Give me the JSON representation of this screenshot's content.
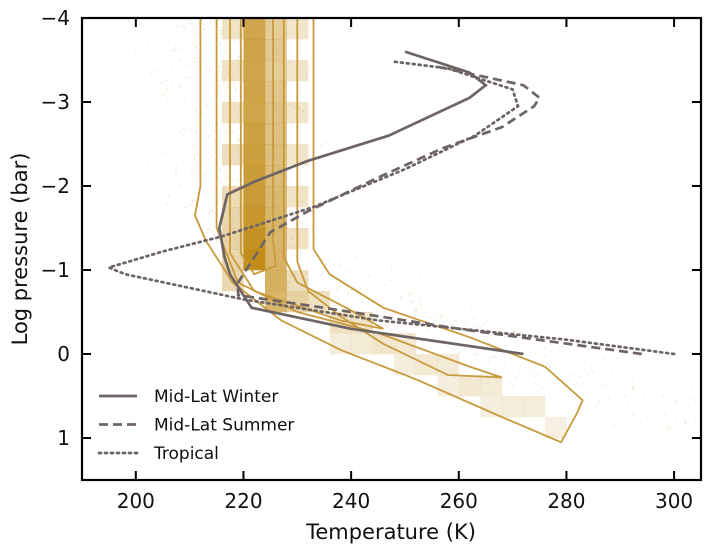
{
  "chart_data": {
    "type": "line",
    "xlabel": "Temperature (K)",
    "ylabel": "Log pressure (bar)",
    "xlim": [
      190,
      305
    ],
    "ylim": [
      1.5,
      -4
    ],
    "x_ticks": [
      200,
      220,
      240,
      260,
      280,
      300
    ],
    "y_ticks": [
      -4,
      -3,
      -2,
      -1,
      0,
      1
    ],
    "y_tick_labels": [
      "−4",
      "−3",
      "−2",
      "−1",
      "0",
      "1"
    ],
    "legend_position": "bottom-left",
    "line_color": "#6e6464",
    "density_color": "#c08a14",
    "contour_color": "#c89a3c",
    "series": [
      {
        "name": "Mid-Lat Winter",
        "style": "solid",
        "points": [
          [
            272,
            0.0
          ],
          [
            240,
            -0.3
          ],
          [
            221.5,
            -0.55
          ],
          [
            217.5,
            -0.95
          ],
          [
            216.5,
            -1.15
          ],
          [
            215.5,
            -1.5
          ],
          [
            217,
            -1.9
          ],
          [
            222,
            -2.05
          ],
          [
            232,
            -2.3
          ],
          [
            247,
            -2.6
          ],
          [
            262,
            -3.05
          ],
          [
            265,
            -3.2
          ],
          [
            262,
            -3.35
          ],
          [
            250,
            -3.6
          ]
        ]
      },
      {
        "name": "Mid-Lat Summer",
        "style": "dashed",
        "points": [
          [
            294,
            0.0
          ],
          [
            260,
            -0.3
          ],
          [
            235,
            -0.55
          ],
          [
            219,
            -0.7
          ],
          [
            219,
            -0.85
          ],
          [
            222,
            -1.15
          ],
          [
            225,
            -1.45
          ],
          [
            232,
            -1.7
          ],
          [
            245,
            -2.1
          ],
          [
            257,
            -2.45
          ],
          [
            268,
            -2.7
          ],
          [
            274,
            -2.95
          ],
          [
            275,
            -3.05
          ],
          [
            272,
            -3.2
          ],
          [
            256,
            -3.42
          ]
        ]
      },
      {
        "name": "Tropical",
        "style": "dotted",
        "points": [
          [
            300,
            0.0
          ],
          [
            280,
            -0.17
          ],
          [
            245,
            -0.4
          ],
          [
            220,
            -0.65
          ],
          [
            198,
            -0.95
          ],
          [
            195,
            -1.03
          ],
          [
            205,
            -1.22
          ],
          [
            216,
            -1.4
          ],
          [
            233,
            -1.75
          ],
          [
            250,
            -2.2
          ],
          [
            263,
            -2.6
          ],
          [
            271,
            -2.95
          ],
          [
            270,
            -3.15
          ],
          [
            258,
            -3.4
          ],
          [
            248,
            -3.48
          ]
        ]
      }
    ],
    "density_cells": [
      {
        "x": 220,
        "y": -4.0,
        "v": 0.75
      },
      {
        "x": 220,
        "y": -3.75,
        "v": 0.78
      },
      {
        "x": 220,
        "y": -3.5,
        "v": 0.76
      },
      {
        "x": 220,
        "y": -3.25,
        "v": 0.78
      },
      {
        "x": 220,
        "y": -3.0,
        "v": 0.77
      },
      {
        "x": 220,
        "y": -2.75,
        "v": 0.8
      },
      {
        "x": 220,
        "y": -2.5,
        "v": 0.82
      },
      {
        "x": 220,
        "y": -2.25,
        "v": 0.84
      },
      {
        "x": 220,
        "y": -2.0,
        "v": 0.86
      },
      {
        "x": 220,
        "y": -1.75,
        "v": 0.9
      },
      {
        "x": 220,
        "y": -1.5,
        "v": 0.95
      },
      {
        "x": 220,
        "y": -1.25,
        "v": 1.0
      },
      {
        "x": 224,
        "y": -4.0,
        "v": 0.4
      },
      {
        "x": 224,
        "y": -3.75,
        "v": 0.42
      },
      {
        "x": 224,
        "y": -3.5,
        "v": 0.4
      },
      {
        "x": 224,
        "y": -3.25,
        "v": 0.45
      },
      {
        "x": 224,
        "y": -3.0,
        "v": 0.48
      },
      {
        "x": 224,
        "y": -2.75,
        "v": 0.5
      },
      {
        "x": 224,
        "y": -2.5,
        "v": 0.52
      },
      {
        "x": 224,
        "y": -2.25,
        "v": 0.55
      },
      {
        "x": 224,
        "y": -2.0,
        "v": 0.58
      },
      {
        "x": 224,
        "y": -1.75,
        "v": 0.6
      },
      {
        "x": 224,
        "y": -1.5,
        "v": 0.6
      },
      {
        "x": 224,
        "y": -1.25,
        "v": 0.62
      },
      {
        "x": 224,
        "y": -1.0,
        "v": 0.65
      },
      {
        "x": 224,
        "y": -0.75,
        "v": 0.6
      },
      {
        "x": 216,
        "y": -4.0,
        "v": 0.18
      },
      {
        "x": 216,
        "y": -3.5,
        "v": 0.2
      },
      {
        "x": 216,
        "y": -3.0,
        "v": 0.2
      },
      {
        "x": 216,
        "y": -2.5,
        "v": 0.22
      },
      {
        "x": 216,
        "y": -2.0,
        "v": 0.25
      },
      {
        "x": 216,
        "y": -1.75,
        "v": 0.3
      },
      {
        "x": 216,
        "y": -1.5,
        "v": 0.32
      },
      {
        "x": 216,
        "y": -1.25,
        "v": 0.3
      },
      {
        "x": 216,
        "y": -1.0,
        "v": 0.28
      },
      {
        "x": 228,
        "y": -4.0,
        "v": 0.15
      },
      {
        "x": 228,
        "y": -3.5,
        "v": 0.15
      },
      {
        "x": 228,
        "y": -3.0,
        "v": 0.16
      },
      {
        "x": 228,
        "y": -2.5,
        "v": 0.16
      },
      {
        "x": 228,
        "y": -2.0,
        "v": 0.18
      },
      {
        "x": 228,
        "y": -1.5,
        "v": 0.2
      },
      {
        "x": 228,
        "y": -1.0,
        "v": 0.22
      },
      {
        "x": 228,
        "y": -0.75,
        "v": 0.35
      },
      {
        "x": 232,
        "y": -0.75,
        "v": 0.2
      },
      {
        "x": 236,
        "y": -0.5,
        "v": 0.2
      },
      {
        "x": 240,
        "y": -0.5,
        "v": 0.18
      },
      {
        "x": 244,
        "y": -0.25,
        "v": 0.15
      },
      {
        "x": 248,
        "y": -0.25,
        "v": 0.12
      },
      {
        "x": 252,
        "y": 0.0,
        "v": 0.12
      },
      {
        "x": 256,
        "y": 0.0,
        "v": 0.1
      },
      {
        "x": 260,
        "y": 0.25,
        "v": 0.12
      },
      {
        "x": 264,
        "y": 0.25,
        "v": 0.1
      },
      {
        "x": 268,
        "y": 0.5,
        "v": 0.08
      },
      {
        "x": 272,
        "y": 0.5,
        "v": 0.08
      },
      {
        "x": 236,
        "y": -0.25,
        "v": 0.08
      },
      {
        "x": 240,
        "y": -0.25,
        "v": 0.1
      },
      {
        "x": 248,
        "y": 0.0,
        "v": 0.08
      },
      {
        "x": 256,
        "y": 0.25,
        "v": 0.07
      },
      {
        "x": 264,
        "y": 0.5,
        "v": 0.07
      },
      {
        "x": 276,
        "y": 0.75,
        "v": 0.05
      }
    ],
    "contours": [
      {
        "points": [
          [
            212,
            -4
          ],
          [
            212,
            -2
          ],
          [
            211,
            -1.65
          ],
          [
            213,
            -1.35
          ],
          [
            218,
            -0.85
          ],
          [
            227,
            -0.4
          ],
          [
            238,
            -0.05
          ],
          [
            252,
            0.3
          ],
          [
            268,
            0.75
          ],
          [
            279,
            1.05
          ],
          [
            282,
            0.7
          ],
          [
            283,
            0.55
          ],
          [
            276,
            0.15
          ],
          [
            262,
            -0.2
          ],
          [
            246,
            -0.55
          ],
          [
            236,
            -0.95
          ],
          [
            233,
            -1.25
          ],
          [
            233,
            -2
          ],
          [
            233,
            -4
          ]
        ]
      },
      {
        "points": [
          [
            215,
            -4
          ],
          [
            215,
            -1.5
          ],
          [
            219,
            -0.85
          ],
          [
            230,
            -0.5
          ],
          [
            245,
            -0.25
          ],
          [
            262,
            0.15
          ],
          [
            268,
            0.28
          ],
          [
            258,
            0.25
          ],
          [
            246,
            -0.12
          ],
          [
            238,
            -0.45
          ],
          [
            232,
            -0.75
          ],
          [
            230,
            -1.1
          ],
          [
            230,
            -4
          ]
        ]
      },
      {
        "points": [
          [
            217.5,
            -4
          ],
          [
            217.5,
            -1.2
          ],
          [
            222,
            -0.75
          ],
          [
            238,
            -0.4
          ],
          [
            246,
            -0.3
          ],
          [
            240,
            -0.52
          ],
          [
            230,
            -0.85
          ],
          [
            227.5,
            -1.15
          ],
          [
            227.5,
            -4
          ]
        ]
      },
      {
        "points": [
          [
            219.5,
            -4
          ],
          [
            219.5,
            -1.2
          ],
          [
            222,
            -0.95
          ],
          [
            226,
            -1.05
          ],
          [
            225.5,
            -1.35
          ],
          [
            225.5,
            -4
          ]
        ]
      }
    ]
  }
}
